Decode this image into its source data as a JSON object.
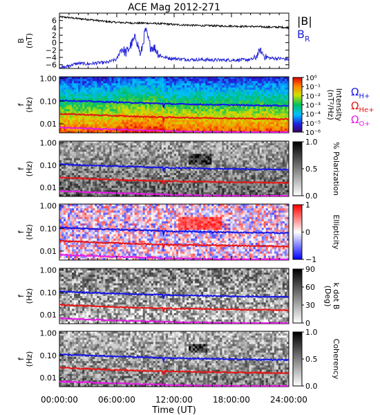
{
  "chart_data": {
    "title": "ACE Mag 2012-271",
    "type": "line",
    "xlabel": "Time (UT)",
    "x_ticks": [
      "00:00:00",
      "06:00:00",
      "12:00:00",
      "18:00:00",
      "24:00:00"
    ],
    "xlim_hours": [
      0,
      24
    ],
    "panels": [
      {
        "id": "field",
        "type": "line",
        "ylabel": [
          "B",
          "(nT)"
        ],
        "ylim": [
          -7,
          8
        ],
        "y_ticks": [
          "6",
          "4",
          "2",
          "0",
          "−2",
          "−4",
          "−6"
        ],
        "y_tick_values": [
          6,
          4,
          2,
          0,
          -2,
          -4,
          -6
        ],
        "series": [
          {
            "name": "|B|",
            "color": "#000000",
            "x": [
              0,
              1,
              2,
              3,
              4,
              5,
              6,
              7,
              8,
              9,
              10,
              11,
              12,
              13,
              14,
              15,
              16,
              17,
              18,
              19,
              20,
              21,
              22,
              23,
              24
            ],
            "values": [
              7.0,
              6.8,
              6.5,
              6.3,
              6.0,
              5.7,
              5.5,
              5.4,
              5.3,
              5.3,
              5.2,
              5.1,
              4.9,
              4.8,
              4.7,
              4.6,
              4.6,
              4.5,
              4.5,
              4.4,
              4.4,
              4.3,
              4.2,
              4.2,
              4.1
            ]
          },
          {
            "name": "B",
            "subscript": "R",
            "color": "#1f1fd8",
            "x": [
              0,
              0.5,
              1,
              2,
              3,
              4,
              5,
              6,
              6.5,
              7,
              7.5,
              8,
              8.5,
              9,
              9.5,
              10,
              10.5,
              11,
              11.5,
              12,
              13,
              14,
              15,
              16,
              17,
              18,
              19,
              20,
              20.5,
              21,
              21.5,
              22,
              23,
              24
            ],
            "values": [
              -6.6,
              -6.8,
              -6.2,
              -5.6,
              -5.8,
              -5.5,
              -5.4,
              -4.5,
              -1.5,
              -2.8,
              -0.5,
              1.5,
              -3.5,
              3.5,
              -1.0,
              -1.5,
              -3.5,
              -4.0,
              -4.2,
              -4.3,
              -4.5,
              -4.6,
              -4.6,
              -4.7,
              -4.7,
              -4.7,
              -4.7,
              -4.6,
              -4.2,
              -2.0,
              -3.8,
              -4.2,
              -4.3,
              -4.5
            ]
          }
        ]
      },
      {
        "id": "intensity",
        "type": "heatmap",
        "ylabel": [
          "f",
          "(Hz)"
        ],
        "y_ticks": [
          "1.00",
          "0.10",
          "0.01"
        ],
        "y_tick_values": [
          1.0,
          0.1,
          0.01
        ],
        "colorbar": {
          "label": [
            "Intensity",
            "(nT²/Hz)"
          ],
          "ticks": [
            "10⁰",
            "10⁻¹",
            "10⁻²",
            "10⁻³",
            "10⁻⁴",
            "10⁻⁵",
            "10⁻⁶"
          ],
          "colormap": "rainbow"
        }
      },
      {
        "id": "polarization",
        "type": "heatmap",
        "ylabel": [
          "f",
          "(Hz)"
        ],
        "y_ticks": [
          "1.00",
          "0.10",
          "0.01"
        ],
        "y_tick_values": [
          1.0,
          0.1,
          0.01
        ],
        "colorbar": {
          "label": [
            "% Polarization"
          ],
          "ticks": [
            "1.0",
            "0.5",
            "0.0"
          ],
          "colormap": "grayscale"
        }
      },
      {
        "id": "ellipticity",
        "type": "heatmap",
        "ylabel": [
          "f",
          "(Hz)"
        ],
        "y_ticks": [
          "1.00",
          "0.10",
          "0.01"
        ],
        "y_tick_values": [
          1.0,
          0.1,
          0.01
        ],
        "colorbar": {
          "label": [
            "Ellipticity"
          ],
          "ticks": [
            "1",
            "0",
            "−1"
          ],
          "colormap": "blue-white-red"
        }
      },
      {
        "id": "kdotb",
        "type": "heatmap",
        "ylabel": [
          "f",
          "(Hz)"
        ],
        "y_ticks": [
          "1.00",
          "0.10",
          "0.01"
        ],
        "y_tick_values": [
          1.0,
          0.1,
          0.01
        ],
        "colorbar": {
          "label": [
            "k dot B",
            "(Deg)"
          ],
          "ticks": [
            "90",
            "60",
            "30",
            "0"
          ],
          "colormap": "grayscale"
        }
      },
      {
        "id": "coherency",
        "type": "heatmap",
        "ylabel": [
          "f",
          "(Hz)"
        ],
        "y_ticks": [
          "1.00",
          "0.10",
          "0.01"
        ],
        "y_tick_values": [
          1.0,
          0.1,
          0.01
        ],
        "colorbar": {
          "label": [
            "Coherency"
          ],
          "ticks": [
            "1.0",
            "0.5",
            "0.0"
          ],
          "colormap": "grayscale"
        }
      }
    ],
    "ylim_hz": [
      0.004,
      1.2
    ],
    "gyrofrequency_lines": [
      {
        "name": "Ω",
        "subscript": "H+",
        "color": "#1515e6",
        "x": [
          0,
          4,
          8,
          12,
          16,
          20,
          24
        ],
        "values": [
          0.11,
          0.095,
          0.085,
          0.075,
          0.07,
          0.066,
          0.063
        ]
      },
      {
        "name": "Ω",
        "subscript": "He+",
        "color": "#e61515",
        "x": [
          0,
          4,
          8,
          12,
          16,
          20,
          24
        ],
        "values": [
          0.028,
          0.024,
          0.021,
          0.019,
          0.018,
          0.017,
          0.016
        ]
      },
      {
        "name": "Ω",
        "subscript": "O+",
        "color": "#e619e6",
        "x": [
          0,
          4,
          8,
          12,
          16,
          20,
          24
        ],
        "values": [
          0.0069,
          0.006,
          0.0053,
          0.0047,
          0.0044,
          0.0041,
          0.004
        ]
      }
    ]
  }
}
